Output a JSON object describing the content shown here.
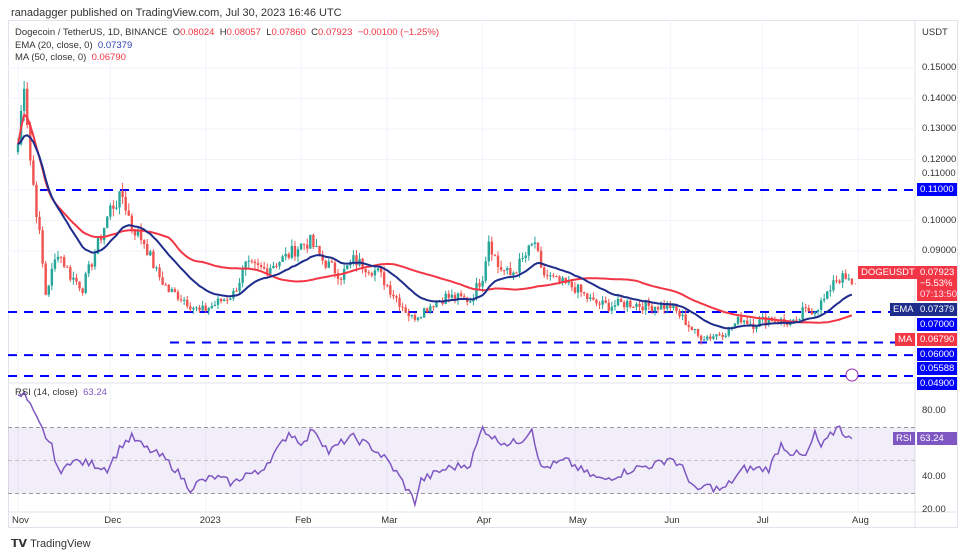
{
  "header": {
    "published": "ranadagger published on TradingView.com, Jul 30, 2023 16:46 UTC"
  },
  "symbol": {
    "title": "Dogecoin / TetherUS, 1D, BINANCE",
    "o_label": "O",
    "o": "0.08024",
    "h_label": "H",
    "h": "0.08057",
    "l_label": "L",
    "l": "0.07860",
    "c_label": "C",
    "c": "0.07923",
    "change": "−0.00100 (−1.25%)",
    "ticker": "DOGEUSDT",
    "last_price": "0.07923",
    "pct": "−5.53%",
    "countdown": "07:13:50"
  },
  "indicators": {
    "ema_label": "EMA (20, close, 0)",
    "ema_value": "0.07379",
    "ema_tag": "EMA",
    "ma_label": "MA (50, close, 0)",
    "ma_value": "0.06790",
    "ma_tag": "MA",
    "rsi_label": "RSI (14, close)",
    "rsi_value": "63.24",
    "rsi_tag": "RSI"
  },
  "price_axis": {
    "currency": "USDT",
    "ticks": [
      "0.15000",
      "0.14000",
      "0.13000",
      "0.12000",
      "0.11000",
      "0.10000",
      "0.09000"
    ],
    "ticks_num": [
      0.15,
      0.14,
      0.13,
      0.12,
      0.11,
      0.1,
      0.09
    ],
    "levels": [
      {
        "label": "0.11000",
        "value": 0.11
      },
      {
        "label": "0.07000",
        "value": 0.07
      },
      {
        "label": "0.06000",
        "value": 0.06
      },
      {
        "label": "0.05588",
        "value": 0.05588
      },
      {
        "label": "0.04900",
        "value": 0.049
      }
    ]
  },
  "rsi_axis": {
    "ticks": [
      "80.00",
      "40.00",
      "20.00"
    ],
    "ticks_num": [
      80,
      40,
      20
    ]
  },
  "time_axis": {
    "labels": [
      {
        "label": "Nov",
        "date": "2022-11-01"
      },
      {
        "label": "Dec",
        "date": "2022-12-01"
      },
      {
        "label": "2023",
        "date": "2023-01-01"
      },
      {
        "label": "Feb",
        "date": "2023-02-01"
      },
      {
        "label": "Mar",
        "date": "2023-03-01"
      },
      {
        "label": "Apr",
        "date": "2023-04-01"
      },
      {
        "label": "May",
        "date": "2023-05-01"
      },
      {
        "label": "Jun",
        "date": "2023-06-01"
      },
      {
        "label": "Jul",
        "date": "2023-07-01"
      },
      {
        "label": "Aug",
        "date": "2023-08-01"
      }
    ]
  },
  "colors": {
    "up": "#26a69a",
    "down": "#ef5350",
    "ema": "#1e2d8c",
    "ma": "#f23645",
    "levels": "#0000ff",
    "rsi": "#7e57c2"
  },
  "footer": {
    "brand": "TradingView"
  },
  "chart_data": {
    "type": "candlestick",
    "price_path": [
      [
        "2022-11-01",
        0.125
      ],
      [
        "2022-11-03",
        0.146
      ],
      [
        "2022-11-05",
        0.12
      ],
      [
        "2022-11-08",
        0.095
      ],
      [
        "2022-11-10",
        0.076
      ],
      [
        "2022-11-14",
        0.09
      ],
      [
        "2022-11-18",
        0.082
      ],
      [
        "2022-11-22",
        0.078
      ],
      [
        "2022-11-28",
        0.095
      ],
      [
        "2022-12-01",
        0.104
      ],
      [
        "2022-12-05",
        0.108
      ],
      [
        "2022-12-08",
        0.098
      ],
      [
        "2022-12-12",
        0.093
      ],
      [
        "2022-12-16",
        0.083
      ],
      [
        "2022-12-20",
        0.077
      ],
      [
        "2022-12-24",
        0.075
      ],
      [
        "2022-12-30",
        0.07
      ],
      [
        "2023-01-03",
        0.072
      ],
      [
        "2023-01-10",
        0.076
      ],
      [
        "2023-01-14",
        0.085
      ],
      [
        "2023-01-20",
        0.084
      ],
      [
        "2023-01-27",
        0.088
      ],
      [
        "2023-02-01",
        0.092
      ],
      [
        "2023-02-04",
        0.093
      ],
      [
        "2023-02-08",
        0.087
      ],
      [
        "2023-02-14",
        0.082
      ],
      [
        "2023-02-18",
        0.087
      ],
      [
        "2023-02-22",
        0.085
      ],
      [
        "2023-02-26",
        0.083
      ],
      [
        "2023-03-03",
        0.076
      ],
      [
        "2023-03-09",
        0.068
      ],
      [
        "2023-03-12",
        0.07
      ],
      [
        "2023-03-16",
        0.073
      ],
      [
        "2023-03-20",
        0.075
      ],
      [
        "2023-03-28",
        0.074
      ],
      [
        "2023-04-01",
        0.082
      ],
      [
        "2023-04-03",
        0.094
      ],
      [
        "2023-04-06",
        0.085
      ],
      [
        "2023-04-10",
        0.082
      ],
      [
        "2023-04-14",
        0.087
      ],
      [
        "2023-04-18",
        0.093
      ],
      [
        "2023-04-20",
        0.083
      ],
      [
        "2023-04-25",
        0.08
      ],
      [
        "2023-05-01",
        0.078
      ],
      [
        "2023-05-07",
        0.073
      ],
      [
        "2023-05-12",
        0.072
      ],
      [
        "2023-05-18",
        0.073
      ],
      [
        "2023-05-25",
        0.072
      ],
      [
        "2023-06-01",
        0.072
      ],
      [
        "2023-06-05",
        0.068
      ],
      [
        "2023-06-10",
        0.062
      ],
      [
        "2023-06-14",
        0.062
      ],
      [
        "2023-06-20",
        0.064
      ],
      [
        "2023-06-24",
        0.068
      ],
      [
        "2023-06-28",
        0.066
      ],
      [
        "2023-07-03",
        0.068
      ],
      [
        "2023-07-07",
        0.067
      ],
      [
        "2023-07-12",
        0.066
      ],
      [
        "2023-07-14",
        0.07
      ],
      [
        "2023-07-18",
        0.071
      ],
      [
        "2023-07-22",
        0.075
      ],
      [
        "2023-07-24",
        0.081
      ],
      [
        "2023-07-27",
        0.081
      ],
      [
        "2023-07-30",
        0.07923
      ]
    ],
    "rsi_path": [
      [
        "2022-11-01",
        88
      ],
      [
        "2022-11-03",
        90
      ],
      [
        "2022-11-07",
        75
      ],
      [
        "2022-11-12",
        58
      ],
      [
        "2022-11-15",
        40
      ],
      [
        "2022-11-17",
        50
      ],
      [
        "2022-11-25",
        48
      ],
      [
        "2022-11-30",
        45
      ],
      [
        "2022-12-05",
        60
      ],
      [
        "2022-12-08",
        64
      ],
      [
        "2022-12-12",
        58
      ],
      [
        "2022-12-18",
        52
      ],
      [
        "2022-12-22",
        45
      ],
      [
        "2022-12-27",
        33
      ],
      [
        "2022-12-30",
        37
      ],
      [
        "2023-01-04",
        40
      ],
      [
        "2023-01-10",
        36
      ],
      [
        "2023-01-14",
        42
      ],
      [
        "2023-01-18",
        42
      ],
      [
        "2023-01-25",
        58
      ],
      [
        "2023-01-28",
        67
      ],
      [
        "2023-02-02",
        60
      ],
      [
        "2023-02-05",
        70
      ],
      [
        "2023-02-10",
        55
      ],
      [
        "2023-02-15",
        62
      ],
      [
        "2023-02-18",
        64
      ],
      [
        "2023-02-24",
        58
      ],
      [
        "2023-03-01",
        50
      ],
      [
        "2023-03-05",
        40
      ],
      [
        "2023-03-10",
        25
      ],
      [
        "2023-03-12",
        38
      ],
      [
        "2023-03-20",
        45
      ],
      [
        "2023-03-28",
        48
      ],
      [
        "2023-04-01",
        70
      ],
      [
        "2023-04-05",
        63
      ],
      [
        "2023-04-10",
        60
      ],
      [
        "2023-04-14",
        63
      ],
      [
        "2023-04-17",
        70
      ],
      [
        "2023-04-20",
        45
      ],
      [
        "2023-04-28",
        50
      ],
      [
        "2023-05-05",
        42
      ],
      [
        "2023-05-10",
        38
      ],
      [
        "2023-05-20",
        45
      ],
      [
        "2023-05-28",
        48
      ],
      [
        "2023-06-01",
        52
      ],
      [
        "2023-06-05",
        45
      ],
      [
        "2023-06-10",
        30
      ],
      [
        "2023-06-12",
        35
      ],
      [
        "2023-06-18",
        32
      ],
      [
        "2023-06-25",
        45
      ],
      [
        "2023-07-03",
        45
      ],
      [
        "2023-07-07",
        60
      ],
      [
        "2023-07-10",
        55
      ],
      [
        "2023-07-15",
        52
      ],
      [
        "2023-07-18",
        66
      ],
      [
        "2023-07-20",
        58
      ],
      [
        "2023-07-24",
        67
      ],
      [
        "2023-07-26",
        72
      ],
      [
        "2023-07-28",
        63
      ],
      [
        "2023-07-30",
        63.24
      ]
    ],
    "rsi_band": [
      30,
      70
    ],
    "scale": "linear"
  }
}
